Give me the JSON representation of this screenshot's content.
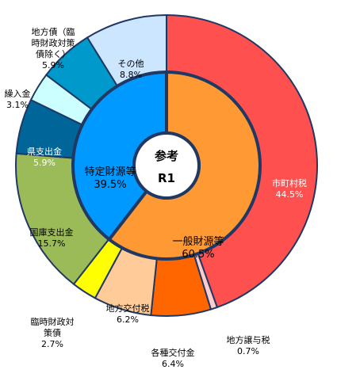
{
  "chart_data": {
    "type": "pie",
    "center_label": [
      "参考",
      "R1"
    ],
    "outer_ring": [
      {
        "label": "市町村税",
        "value": 44.5,
        "color": "#FF5050"
      },
      {
        "label": "地方譲与税",
        "value": 0.7,
        "color": "#FFCCCC"
      },
      {
        "label": "各種交付金",
        "value": 6.4,
        "color": "#FF6600"
      },
      {
        "label": "地方交付税",
        "value": 6.2,
        "color": "#FFCC99"
      },
      {
        "label": "臨時財政対策債",
        "value": 2.7,
        "color": "#FFFF00"
      },
      {
        "label": "国庫支出金",
        "value": 15.7,
        "color": "#9BBB59"
      },
      {
        "label": "県支出金",
        "value": 5.9,
        "color": "#006699"
      },
      {
        "label": "繰入金",
        "value": 3.1,
        "color": "#CCFFFF"
      },
      {
        "label": "地方債（臨時財政対策債除く）",
        "value": 5.9,
        "color": "#0099CC"
      },
      {
        "label": "その他",
        "value": 8.8,
        "color": "#CCE6FF"
      }
    ],
    "inner_ring": [
      {
        "label": "一般財源等",
        "value": 60.5,
        "color": "#FF9933"
      },
      {
        "label": "特定財源等",
        "value": 39.5,
        "color": "#0099FF"
      }
    ]
  },
  "labels": {
    "tax": [
      "市町村税",
      "44.5%"
    ],
    "transfer": [
      "地方譲与税",
      "0.7%"
    ],
    "grants": [
      "各種交付金",
      "6.4%"
    ],
    "allocation": [
      "地方交付税",
      "6.2%"
    ],
    "special_bonds": [
      "臨時財政対",
      "策債",
      "2.7%"
    ],
    "national": [
      "国庫支出金",
      "15.7%"
    ],
    "prefecture": [
      "県支出金",
      "5.9%"
    ],
    "transfer_in": [
      "繰入金",
      "3.1%"
    ],
    "bonds": [
      "地方債（臨",
      "時財政対策",
      "債除く）",
      "5.9%"
    ],
    "other": [
      "その他",
      "8.8%"
    ],
    "general": [
      "一般財源等",
      "60.5%"
    ],
    "specific": [
      "特定財源等",
      "39.5%"
    ]
  }
}
